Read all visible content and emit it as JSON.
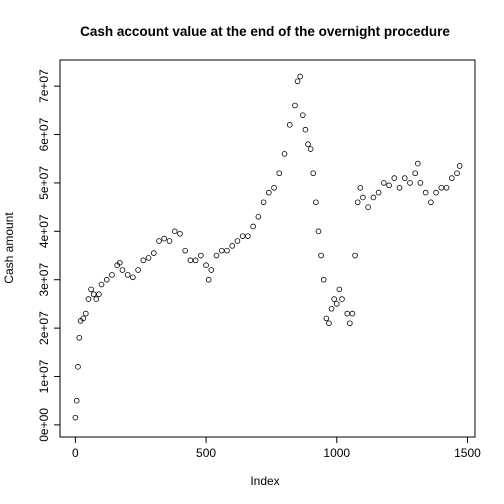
{
  "chart_data": {
    "type": "scatter",
    "title": "Cash account value at the end of the overnight procedure",
    "x_label": "Index",
    "y_label": "Cash amount",
    "xlim": [
      -58.8,
      1528.8
    ],
    "xticks": [
      0,
      500,
      1000,
      1500
    ],
    "ylim": [
      -2500000,
      75400000
    ],
    "yticks": [
      {
        "value": 0,
        "label": "0e+00"
      },
      {
        "value": 10000000,
        "label": "1e+07"
      },
      {
        "value": 20000000,
        "label": "2e+07"
      },
      {
        "value": 30000000,
        "label": "3e+07"
      },
      {
        "value": 40000000,
        "label": "4e+07"
      },
      {
        "value": 50000000,
        "label": "5e+07"
      },
      {
        "value": 60000000,
        "label": "6e+07"
      },
      {
        "value": 70000000,
        "label": "7e+07"
      }
    ],
    "color": "#000000",
    "x": [
      0,
      5,
      10,
      15,
      20,
      30,
      40,
      50,
      60,
      70,
      80,
      90,
      100,
      120,
      140,
      160,
      170,
      180,
      200,
      220,
      240,
      260,
      280,
      300,
      320,
      340,
      360,
      380,
      400,
      420,
      440,
      460,
      480,
      500,
      510,
      520,
      540,
      560,
      580,
      600,
      620,
      640,
      660,
      680,
      700,
      720,
      740,
      760,
      780,
      800,
      820,
      840,
      850,
      860,
      870,
      880,
      890,
      900,
      910,
      920,
      930,
      940,
      950,
      960,
      970,
      980,
      990,
      1000,
      1010,
      1020,
      1040,
      1050,
      1060,
      1070,
      1080,
      1090,
      1100,
      1120,
      1140,
      1160,
      1180,
      1200,
      1220,
      1240,
      1260,
      1280,
      1300,
      1310,
      1320,
      1340,
      1360,
      1380,
      1400,
      1420,
      1440,
      1460,
      1470
    ],
    "values": [
      1500000,
      5000000,
      12000000,
      18000000,
      21500000,
      22000000,
      23000000,
      26000000,
      28000000,
      27000000,
      26000000,
      27000000,
      29000000,
      30000000,
      31000000,
      33000000,
      33500000,
      32000000,
      31000000,
      30500000,
      32000000,
      34000000,
      34500000,
      35500000,
      38000000,
      38500000,
      38000000,
      40000000,
      39500000,
      36000000,
      34000000,
      34000000,
      35000000,
      33000000,
      30000000,
      32000000,
      35000000,
      36000000,
      36000000,
      37000000,
      38000000,
      39000000,
      39000000,
      41000000,
      43000000,
      46000000,
      48000000,
      49000000,
      52000000,
      56000000,
      62000000,
      66000000,
      71000000,
      72000000,
      64000000,
      61000000,
      58000000,
      57000000,
      52000000,
      46000000,
      40000000,
      35000000,
      30000000,
      22000000,
      21000000,
      24000000,
      26000000,
      25000000,
      28000000,
      26000000,
      23000000,
      21000000,
      23000000,
      35000000,
      46000000,
      49000000,
      47000000,
      45000000,
      47000000,
      48000000,
      50000000,
      49500000,
      51000000,
      49000000,
      51000000,
      50000000,
      52000000,
      54000000,
      50000000,
      48000000,
      46000000,
      48000000,
      49000000,
      49000000,
      51000000,
      52000000,
      53500000
    ]
  }
}
